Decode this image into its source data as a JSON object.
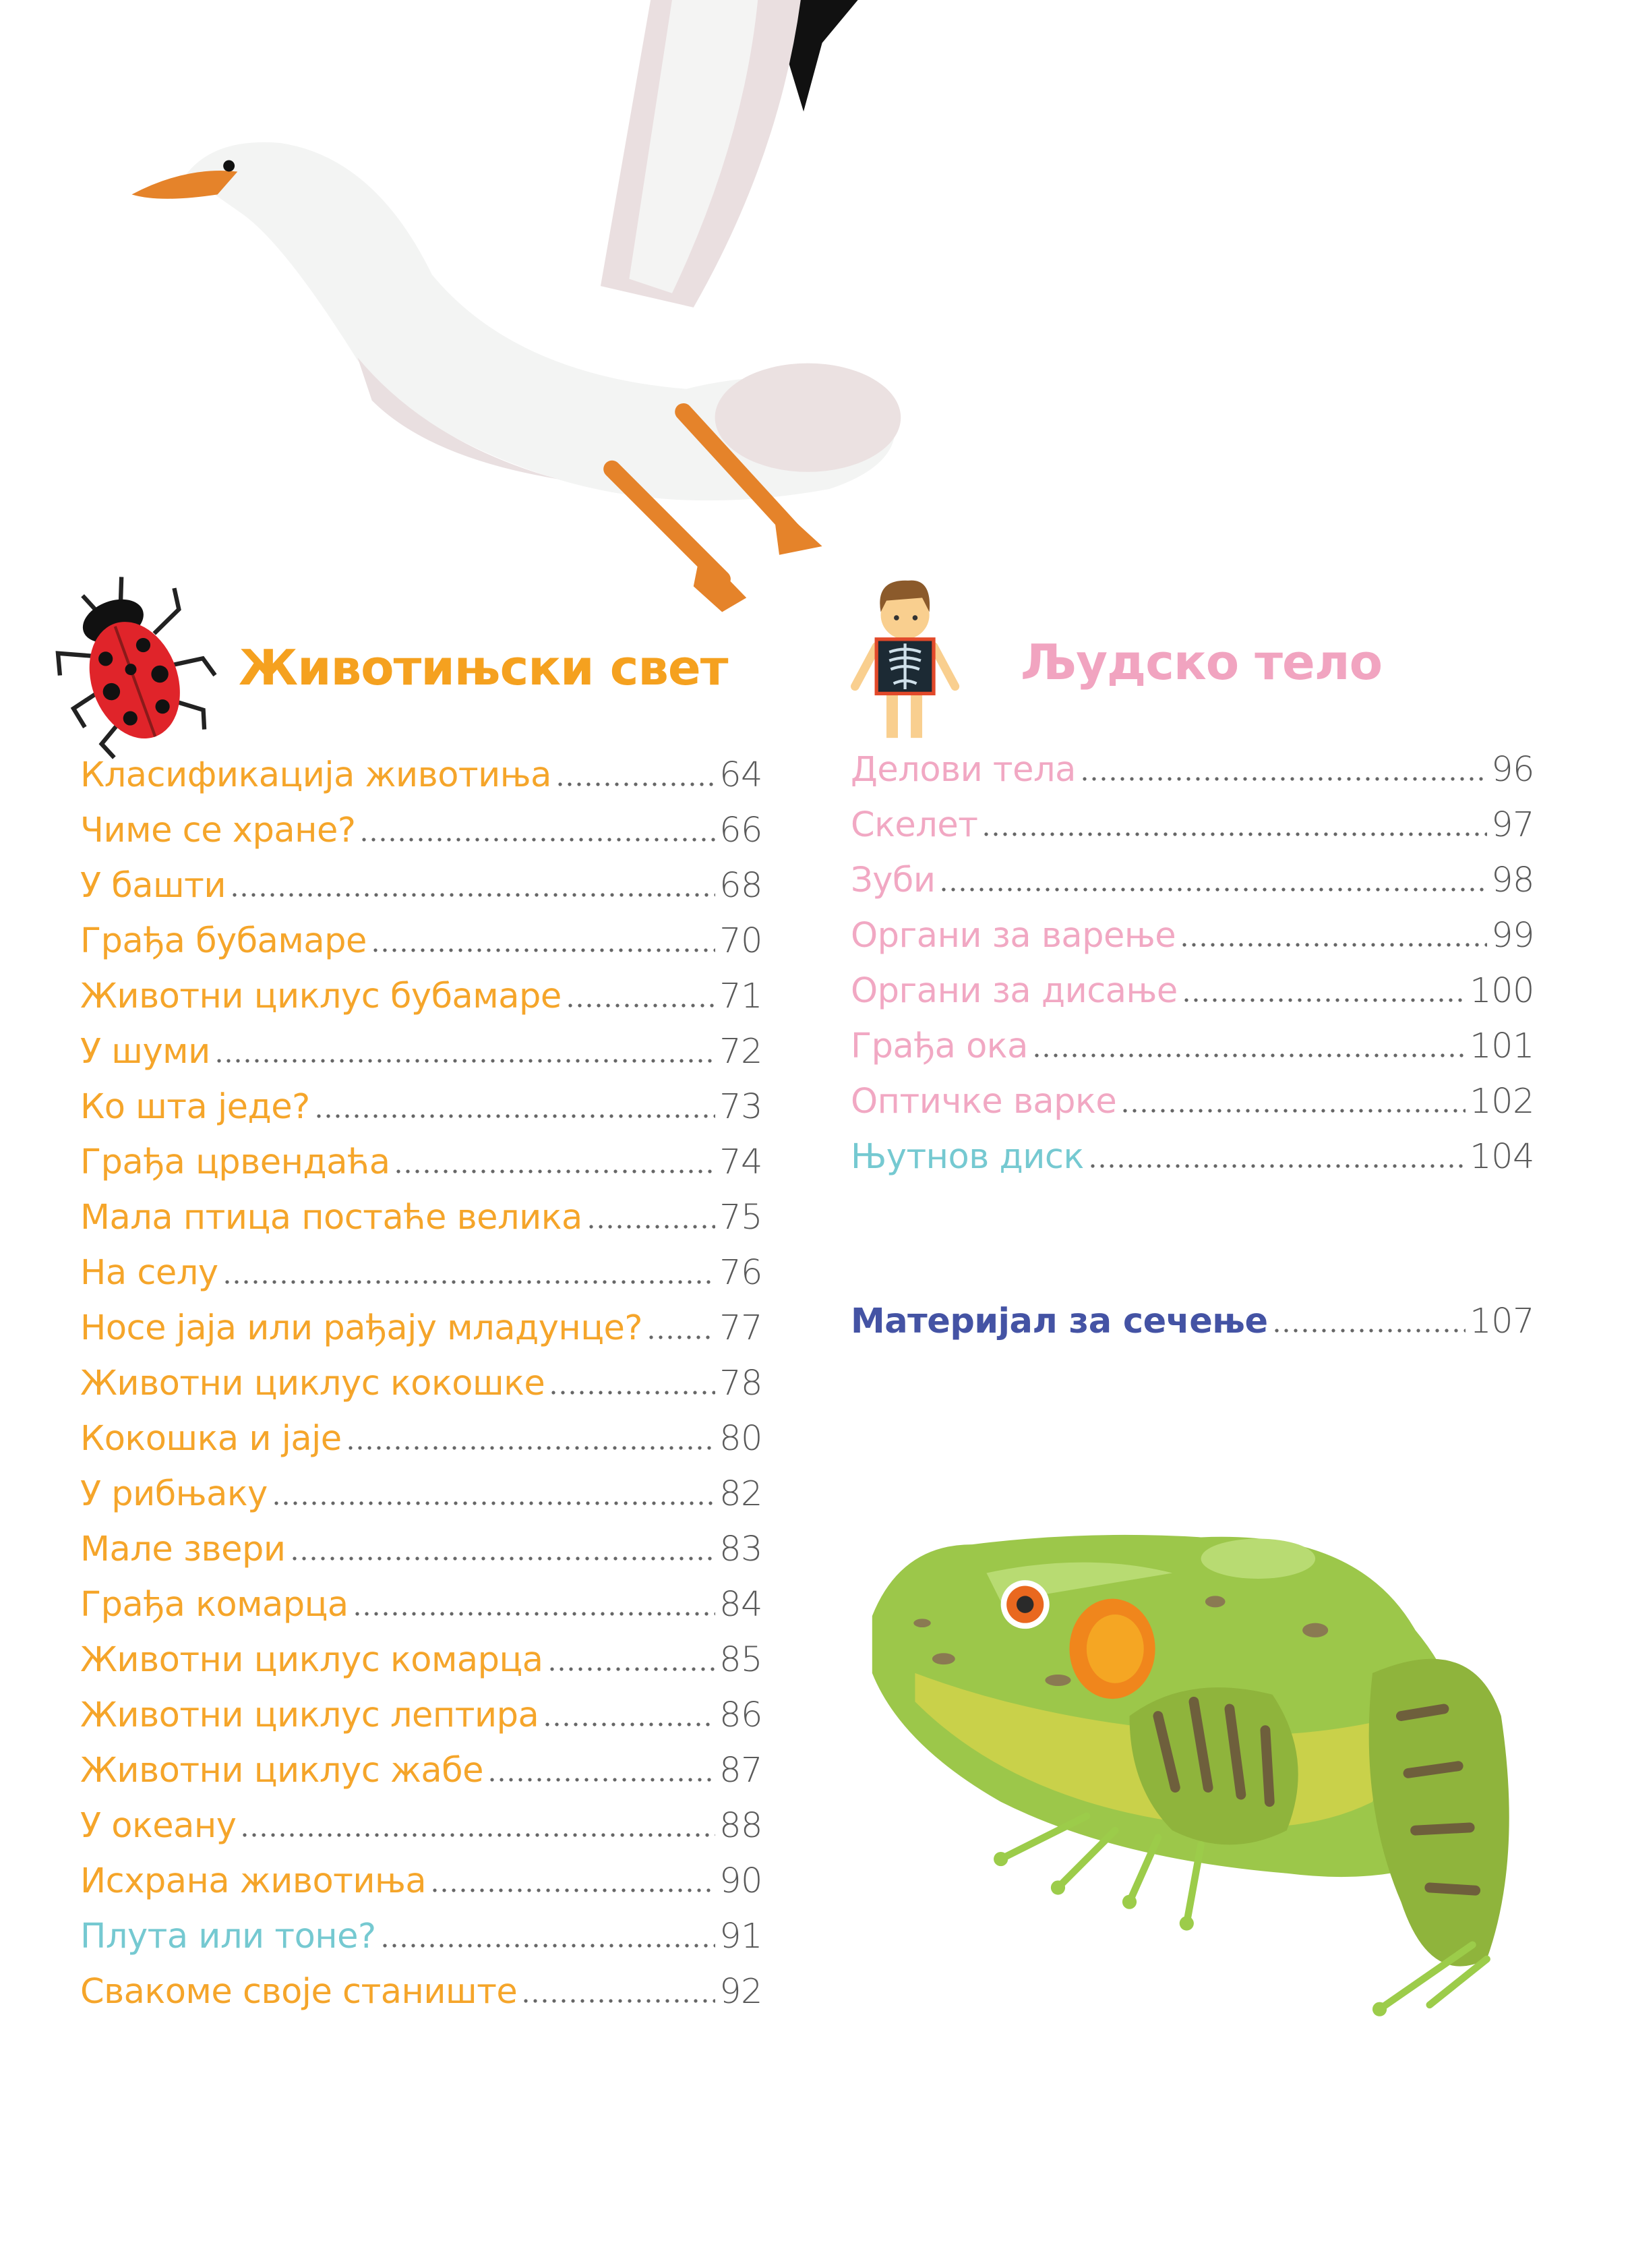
{
  "colors": {
    "animals": "#f5a11f",
    "body": "#f1a4c0",
    "experiment": "#6ec7cf",
    "material": "#3b4aa0",
    "page_number": "#5a5a5a"
  },
  "animals_section": {
    "title": "Животињски свет",
    "icon": "ladybug-icon",
    "items": [
      {
        "label": "Класификација животиња",
        "page": "64",
        "kind": "animals"
      },
      {
        "label": "Чиме се хране?",
        "page": "66",
        "kind": "animals"
      },
      {
        "label": "У башти",
        "page": "68",
        "kind": "animals"
      },
      {
        "label": "Грађа бубамаре",
        "page": "70",
        "kind": "animals"
      },
      {
        "label": "Животни циклус бубамаре",
        "page": "71",
        "kind": "animals"
      },
      {
        "label": "У шуми",
        "page": "72",
        "kind": "animals"
      },
      {
        "label": "Ко шта једе?",
        "page": "73",
        "kind": "animals"
      },
      {
        "label": "Грађа црвендаћа",
        "page": "74",
        "kind": "animals"
      },
      {
        "label": "Мала птица постаће велика",
        "page": "75",
        "kind": "animals"
      },
      {
        "label": "На селу",
        "page": "76",
        "kind": "animals"
      },
      {
        "label": "Носе јаја или рађају младунце?",
        "page": "77",
        "kind": "animals"
      },
      {
        "label": "Животни циклус кокошке",
        "page": "78",
        "kind": "animals"
      },
      {
        "label": "Кокошка и јаје",
        "page": "80",
        "kind": "animals"
      },
      {
        "label": "У рибњаку",
        "page": "82",
        "kind": "animals"
      },
      {
        "label": "Мале звери",
        "page": "83",
        "kind": "animals"
      },
      {
        "label": "Грађа комарца",
        "page": "84",
        "kind": "animals"
      },
      {
        "label": "Животни циклус комарца",
        "page": "85",
        "kind": "animals"
      },
      {
        "label": "Животни циклус лептира",
        "page": "86",
        "kind": "animals"
      },
      {
        "label": "Животни циклус жабе",
        "page": "87",
        "kind": "animals"
      },
      {
        "label": "У океану",
        "page": "88",
        "kind": "animals"
      },
      {
        "label": "Исхрана животиња",
        "page": "90",
        "kind": "animals"
      },
      {
        "label": "Плута или тоне?",
        "page": "91",
        "kind": "experiment"
      },
      {
        "label": "Свакоме своје станиште",
        "page": "92",
        "kind": "animals"
      }
    ]
  },
  "body_section": {
    "title": "Људско тело",
    "icon": "xray-boy-icon",
    "items": [
      {
        "label": "Делови тела",
        "page": "96",
        "kind": "body"
      },
      {
        "label": "Скелет",
        "page": "97",
        "kind": "body"
      },
      {
        "label": "Зуби",
        "page": "98",
        "kind": "body"
      },
      {
        "label": "Органи за варење",
        "page": "99",
        "kind": "body"
      },
      {
        "label": "Органи за дисање",
        "page": "100",
        "kind": "body"
      },
      {
        "label": "Грађа ока",
        "page": "101",
        "kind": "body"
      },
      {
        "label": "Оптичке варке",
        "page": "102",
        "kind": "body"
      },
      {
        "label": "Њутнов диск",
        "page": "104",
        "kind": "experiment"
      }
    ]
  },
  "material": {
    "label": "Материјал за сечење",
    "page": "107"
  },
  "illustrations": [
    "seagull-illustration",
    "ladybug-icon",
    "xray-boy-icon",
    "frog-illustration"
  ]
}
